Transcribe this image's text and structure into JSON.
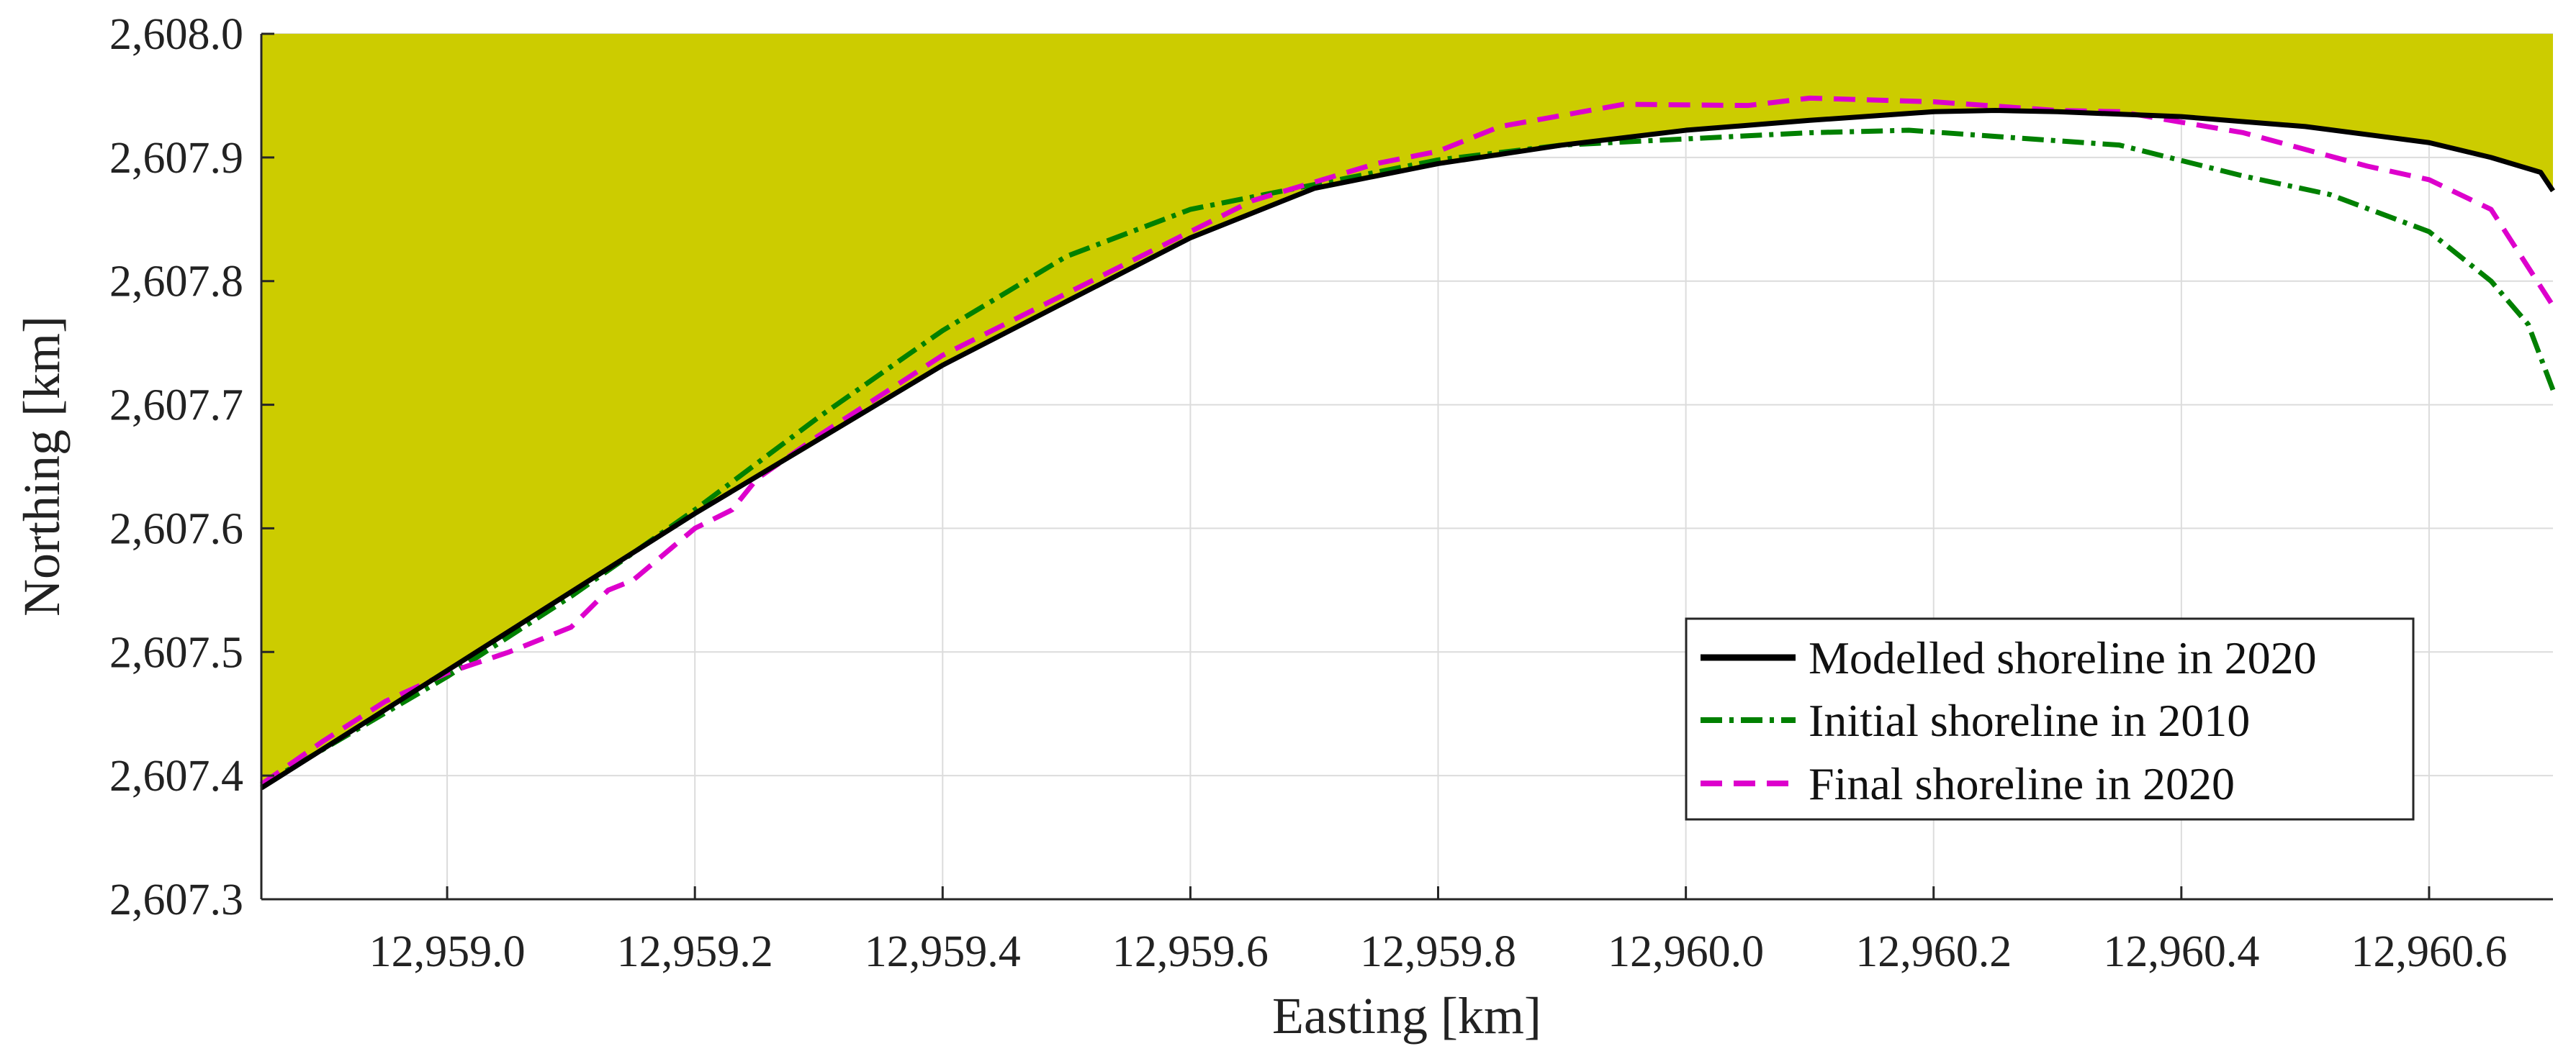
{
  "chart_data": {
    "type": "line",
    "title": "",
    "xlabel": "Easting [km]",
    "ylabel": "Northing [km]",
    "xlim": [
      12958.85,
      12960.7
    ],
    "ylim": [
      2607.3,
      2608.0
    ],
    "x_ticks": [
      12959.0,
      12959.2,
      12959.4,
      12959.6,
      12959.8,
      12960.0,
      12960.2,
      12960.4,
      12960.6
    ],
    "x_tick_labels": [
      "12,959.0",
      "12,959.2",
      "12,959.4",
      "12,959.6",
      "12,959.8",
      "12,960.0",
      "12,960.2",
      "12,960.4",
      "12,960.6"
    ],
    "y_ticks": [
      2607.3,
      2607.4,
      2607.5,
      2607.6,
      2607.7,
      2607.8,
      2607.9,
      2608.0
    ],
    "y_tick_labels": [
      "2,607.3",
      "2,607.4",
      "2,607.5",
      "2,607.6",
      "2,607.7",
      "2,607.8",
      "2,607.9",
      "2,608.0"
    ],
    "grid": true,
    "legend_position": "bottom-right",
    "fill": {
      "description_of_region": "area between modelled shoreline and top of axes",
      "color": "#cccc00"
    },
    "series": [
      {
        "name": "Modelled shoreline in 2020",
        "color": "#000000",
        "dash": "solid",
        "x": [
          12958.85,
          12959.0,
          12959.2,
          12959.4,
          12959.6,
          12959.7,
          12959.8,
          12959.9,
          12960.0,
          12960.1,
          12960.2,
          12960.25,
          12960.3,
          12960.4,
          12960.5,
          12960.6,
          12960.65,
          12960.69,
          12960.7
        ],
        "y": [
          2607.39,
          2607.485,
          2607.612,
          2607.732,
          2607.835,
          2607.875,
          2607.895,
          2607.91,
          2607.922,
          2607.93,
          2607.937,
          2607.938,
          2607.937,
          2607.933,
          2607.925,
          2607.912,
          2607.9,
          2607.888,
          2607.873
        ]
      },
      {
        "name": "Initial shoreline in 2010",
        "color": "#008000",
        "dash": "dashdot",
        "x": [
          12958.85,
          12959.0,
          12959.1,
          12959.2,
          12959.3,
          12959.4,
          12959.5,
          12959.6,
          12959.7,
          12959.8,
          12959.9,
          12960.0,
          12960.1,
          12960.18,
          12960.25,
          12960.35,
          12960.45,
          12960.52,
          12960.6,
          12960.65,
          12960.68,
          12960.7
        ],
        "y": [
          2607.392,
          2607.48,
          2607.545,
          2607.615,
          2607.69,
          2607.76,
          2607.82,
          2607.858,
          2607.878,
          2607.898,
          2607.91,
          2607.915,
          2607.92,
          2607.922,
          2607.917,
          2607.91,
          2607.885,
          2607.87,
          2607.84,
          2607.8,
          2607.765,
          2607.712
        ]
      },
      {
        "name": "Final shoreline in 2020",
        "color": "#dd00cc",
        "dash": "dashed",
        "x": [
          12958.85,
          12958.9,
          12958.95,
          12959.0,
          12959.05,
          12959.1,
          12959.13,
          12959.15,
          12959.2,
          12959.23,
          12959.25,
          12959.3,
          12959.4,
          12959.5,
          12959.6,
          12959.65,
          12959.7,
          12959.75,
          12959.8,
          12959.85,
          12959.95,
          12960.05,
          12960.1,
          12960.2,
          12960.3,
          12960.35,
          12960.45,
          12960.55,
          12960.6,
          12960.65,
          12960.7
        ],
        "y": [
          2607.393,
          2607.428,
          2607.46,
          2607.483,
          2607.5,
          2607.52,
          2607.55,
          2607.558,
          2607.6,
          2607.615,
          2607.64,
          2607.675,
          2607.74,
          2607.79,
          2607.84,
          2607.865,
          2607.88,
          2607.895,
          2607.905,
          2607.925,
          2607.943,
          2607.942,
          2607.948,
          2607.945,
          2607.938,
          2607.937,
          2607.92,
          2607.893,
          2607.882,
          2607.858,
          2607.78
        ]
      }
    ]
  }
}
